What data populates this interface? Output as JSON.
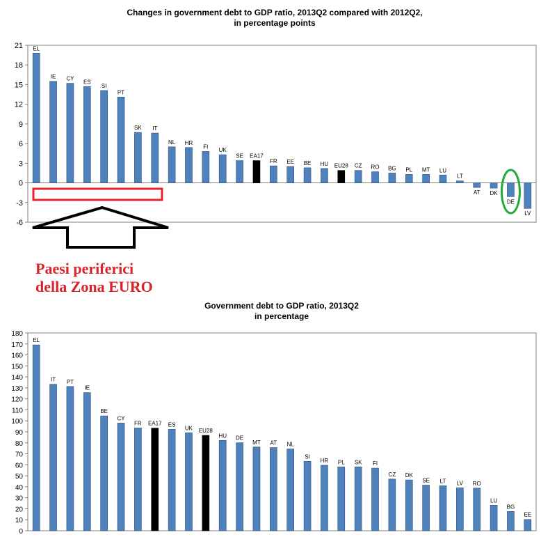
{
  "chart_data": [
    {
      "type": "bar",
      "title": "Changes in government debt to GDP ratio, 2013Q2 compared with 2012Q2,",
      "subtitle": "in percentage points",
      "categories": [
        "EL",
        "IE",
        "CY",
        "ES",
        "SI",
        "PT",
        "SK",
        "IT",
        "NL",
        "HR",
        "FI",
        "UK",
        "SE",
        "EA17",
        "FR",
        "EE",
        "BE",
        "HU",
        "EU28",
        "CZ",
        "RO",
        "BG",
        "PL",
        "MT",
        "LU",
        "LT",
        "AT",
        "DK",
        "DE",
        "LV"
      ],
      "values": [
        19.8,
        15.5,
        15.2,
        14.7,
        14.1,
        13.1,
        7.7,
        7.6,
        5.5,
        5.4,
        4.8,
        4.3,
        3.4,
        3.4,
        2.6,
        2.5,
        2.3,
        2.2,
        1.9,
        1.9,
        1.7,
        1.5,
        1.3,
        1.3,
        1.2,
        0.3,
        -0.7,
        -0.8,
        -2.1,
        -3.9
      ],
      "highlight": [
        "EA17",
        "EU28"
      ],
      "ylim": [
        -6,
        21
      ],
      "yticks": [
        21,
        18,
        15,
        12,
        9,
        6,
        3,
        0,
        -3,
        -6
      ],
      "xlabel": "",
      "ylabel": "",
      "grid": false,
      "bar_color": "#4f81bd",
      "highlight_color": "#000000"
    },
    {
      "type": "bar",
      "title": "Government debt to GDP ratio, 2013Q2",
      "subtitle": "in percentage",
      "categories": [
        "EL",
        "IT",
        "PT",
        "IE",
        "BE",
        "CY",
        "FR",
        "EA17",
        "ES",
        "UK",
        "EU28",
        "HU",
        "DE",
        "MT",
        "AT",
        "NL",
        "SI",
        "HR",
        "PL",
        "SK",
        "FI",
        "CZ",
        "DK",
        "SE",
        "LT",
        "LV",
        "RO",
        "LU",
        "BG",
        "EE"
      ],
      "values": [
        169.1,
        133.3,
        131.3,
        125.7,
        104.5,
        98.0,
        93.5,
        93.4,
        92.3,
        89.1,
        86.8,
        82.2,
        80.1,
        76.2,
        75.7,
        74.4,
        63.2,
        59.6,
        58.1,
        58.1,
        57.0,
        47.0,
        46.2,
        41.5,
        40.9,
        39.1,
        38.8,
        23.2,
        17.5,
        10.3
      ],
      "highlight": [
        "EA17",
        "EU28"
      ],
      "ylim": [
        0,
        180
      ],
      "yticks": [
        0,
        10,
        20,
        30,
        40,
        50,
        60,
        70,
        80,
        90,
        100,
        110,
        120,
        130,
        140,
        150,
        160,
        170,
        180
      ],
      "xlabel": "",
      "ylabel": "",
      "grid": false,
      "bar_color": "#4f81bd",
      "highlight_color": "#000000"
    }
  ],
  "annotation": {
    "line1": "Paesi periferici",
    "line2": "della Zona EURO",
    "text_color": "#d9252a",
    "box_color": "#e8232a",
    "arrow_color": "#000000",
    "ellipse_color": "#1faa3a",
    "ellipse_target": "DE"
  }
}
